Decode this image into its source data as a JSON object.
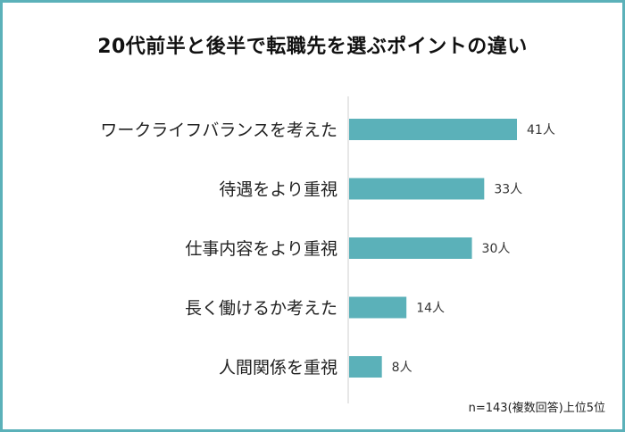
{
  "chart_data": {
    "type": "bar",
    "orientation": "horizontal",
    "title": "20代前半と後半で転職先を選ぶポイントの違い",
    "categories": [
      "ワークライフバランスを考えた",
      "待遇をより重視",
      "仕事内容をより重視",
      "長く働けるか考えた",
      "人間関係を重視"
    ],
    "values": [
      41,
      33,
      30,
      14,
      8
    ],
    "value_labels": [
      "41人",
      "33人",
      "30人",
      "14人",
      "8人"
    ],
    "unit": "人",
    "note": "n=143(複数回答)上位5位",
    "bar_color": "#5bb1b9",
    "frame_color": "#5bb1b9",
    "grid": false,
    "legend": "none",
    "xlim": [
      0,
      41
    ]
  }
}
